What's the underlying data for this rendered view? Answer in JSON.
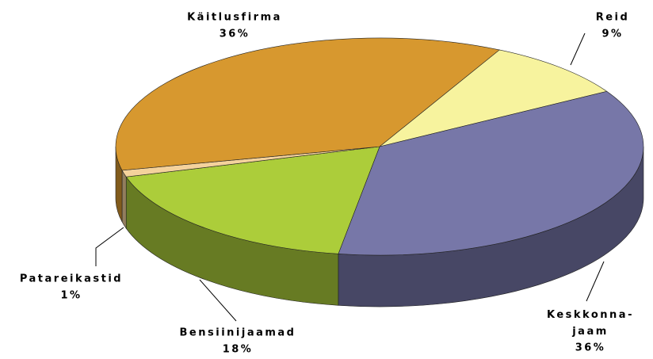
{
  "chart_data": {
    "type": "pie",
    "categories": [
      "Reid",
      "Keskkonna-jaam",
      "Bensiinijaamad",
      "Patareikastid",
      "Käitlusfirma"
    ],
    "values": [
      9,
      36,
      18,
      1,
      36
    ],
    "value_labels": [
      "9%",
      "36%",
      "18%",
      "1%",
      "36%"
    ],
    "colors": [
      "#f7f39e",
      "#7777a8",
      "#accd3a",
      "#f4d29c",
      "#d7982f"
    ]
  }
}
